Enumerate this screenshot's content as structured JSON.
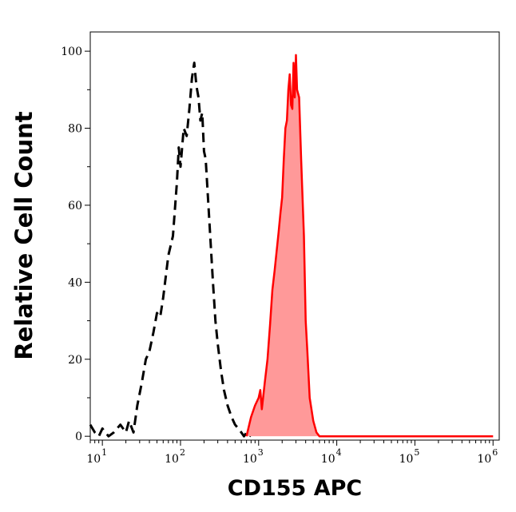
{
  "chart_data": {
    "type": "area",
    "title": "",
    "xlabel": "CD155 APC",
    "ylabel": "Relative Cell Count",
    "x_scale": "log10",
    "xlim": [
      7,
      1200000
    ],
    "ylim": [
      -1,
      105
    ],
    "grid": false,
    "legend": "none",
    "x_ticks": [
      {
        "value": 10,
        "base": "10",
        "exp": "1"
      },
      {
        "value": 100,
        "base": "10",
        "exp": "2"
      },
      {
        "value": 1000,
        "base": "10",
        "exp": "3"
      },
      {
        "value": 10000,
        "base": "10",
        "exp": "4"
      },
      {
        "value": 100000,
        "base": "10",
        "exp": "5"
      },
      {
        "value": 1000000,
        "base": "10",
        "exp": "6"
      }
    ],
    "y_ticks": [
      {
        "value": 0,
        "label": "0"
      },
      {
        "value": 20,
        "label": "20"
      },
      {
        "value": 40,
        "label": "40"
      },
      {
        "value": 60,
        "label": "60"
      },
      {
        "value": 80,
        "label": "80"
      },
      {
        "value": 100,
        "label": "100"
      }
    ],
    "series": [
      {
        "style": "dashed-line",
        "color": "#000000",
        "x": [
          7,
          8,
          9,
          10,
          12,
          14,
          17,
          20,
          22,
          25,
          28,
          32,
          36,
          40,
          45,
          50,
          55,
          60,
          70,
          80,
          90,
          95,
          100,
          110,
          120,
          130,
          140,
          150,
          160,
          170,
          180,
          190,
          200,
          210,
          220,
          240,
          260,
          280,
          300,
          330,
          360,
          400,
          450,
          500,
          550,
          600,
          650,
          700,
          800
        ],
        "y": [
          3,
          1,
          0,
          2,
          0,
          1,
          3,
          1,
          4,
          1,
          8,
          14,
          20,
          22,
          27,
          32,
          31,
          36,
          47,
          52,
          66,
          75,
          70,
          80,
          78,
          85,
          93,
          97,
          91,
          88,
          82,
          84,
          74,
          72,
          65,
          52,
          40,
          30,
          24,
          17,
          12,
          8,
          5,
          3,
          2,
          1,
          0,
          1,
          0
        ]
      },
      {
        "style": "filled-area",
        "color": "#ff0000",
        "fill": "#ff9999",
        "x": [
          700,
          800,
          900,
          1000,
          1050,
          1100,
          1200,
          1300,
          1400,
          1500,
          1600,
          1700,
          1800,
          1900,
          2000,
          2100,
          2200,
          2300,
          2400,
          2500,
          2600,
          2700,
          2800,
          2900,
          3000,
          3100,
          3300,
          3500,
          3800,
          4000,
          4200,
          4500,
          5000,
          5500,
          6000,
          7000,
          10000,
          100000,
          1000000
        ],
        "y": [
          0,
          5,
          8,
          10,
          12,
          7,
          14,
          20,
          29,
          38,
          43,
          48,
          53,
          58,
          62,
          72,
          80,
          82,
          90,
          94,
          86,
          85,
          97,
          88,
          99,
          90,
          88,
          72,
          52,
          30,
          22,
          10,
          4,
          1,
          0,
          0,
          0,
          0,
          0
        ]
      }
    ]
  }
}
